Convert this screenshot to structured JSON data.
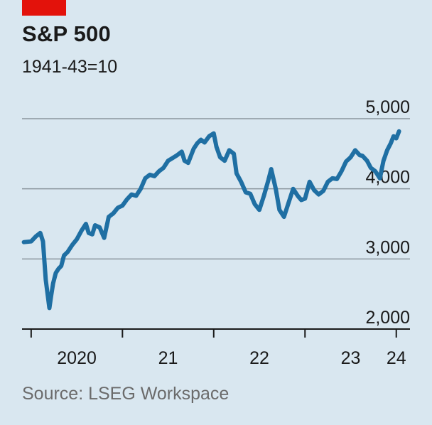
{
  "title": "S&P 500",
  "subtitle": "1941-43=10",
  "source": "Source: LSEG Workspace",
  "colors": {
    "line": "#1f6fa3",
    "accent": "#e3120b",
    "grid": "#8a969e",
    "background": "#d9e7f0"
  },
  "chart_data": {
    "type": "line",
    "title": "S&P 500",
    "subtitle": "1941-43=10",
    "ylim": [
      2000,
      5000
    ],
    "xlim": [
      2019.9,
      2024.15
    ],
    "y_ticks": [
      {
        "value": 5000,
        "label": "5,000"
      },
      {
        "value": 4000,
        "label": "4,000"
      },
      {
        "value": 3000,
        "label": "3,000"
      },
      {
        "value": 2000,
        "label": "2,000"
      }
    ],
    "x_ticks": [
      2020,
      2021,
      2022,
      2023,
      2024
    ],
    "x_tick_labels": [
      {
        "pos": 2020.5,
        "label": "2020"
      },
      {
        "pos": 2021.5,
        "label": "21"
      },
      {
        "pos": 2022.5,
        "label": "22"
      },
      {
        "pos": 2023.5,
        "label": "23"
      },
      {
        "pos": 2024.0,
        "label": "24"
      }
    ],
    "grid": true,
    "y_axis_position": "right",
    "series": [
      {
        "values": [
          [
            2019.92,
            3240
          ],
          [
            2020.0,
            3250
          ],
          [
            2020.05,
            3320
          ],
          [
            2020.1,
            3370
          ],
          [
            2020.13,
            3250
          ],
          [
            2020.16,
            2700
          ],
          [
            2020.2,
            2300
          ],
          [
            2020.22,
            2480
          ],
          [
            2020.24,
            2650
          ],
          [
            2020.27,
            2800
          ],
          [
            2020.3,
            2860
          ],
          [
            2020.33,
            2900
          ],
          [
            2020.36,
            3050
          ],
          [
            2020.4,
            3100
          ],
          [
            2020.45,
            3200
          ],
          [
            2020.5,
            3280
          ],
          [
            2020.55,
            3400
          ],
          [
            2020.6,
            3500
          ],
          [
            2020.63,
            3370
          ],
          [
            2020.67,
            3350
          ],
          [
            2020.7,
            3480
          ],
          [
            2020.75,
            3450
          ],
          [
            2020.8,
            3300
          ],
          [
            2020.85,
            3600
          ],
          [
            2020.9,
            3650
          ],
          [
            2020.95,
            3730
          ],
          [
            2021.0,
            3760
          ],
          [
            2021.05,
            3850
          ],
          [
            2021.1,
            3920
          ],
          [
            2021.15,
            3900
          ],
          [
            2021.2,
            4000
          ],
          [
            2021.25,
            4150
          ],
          [
            2021.3,
            4200
          ],
          [
            2021.35,
            4180
          ],
          [
            2021.4,
            4250
          ],
          [
            2021.45,
            4300
          ],
          [
            2021.5,
            4400
          ],
          [
            2021.55,
            4440
          ],
          [
            2021.6,
            4480
          ],
          [
            2021.65,
            4530
          ],
          [
            2021.68,
            4400
          ],
          [
            2021.72,
            4370
          ],
          [
            2021.78,
            4570
          ],
          [
            2021.82,
            4650
          ],
          [
            2021.86,
            4700
          ],
          [
            2021.9,
            4660
          ],
          [
            2021.95,
            4750
          ],
          [
            2022.0,
            4790
          ],
          [
            2022.03,
            4600
          ],
          [
            2022.07,
            4450
          ],
          [
            2022.12,
            4400
          ],
          [
            2022.17,
            4550
          ],
          [
            2022.22,
            4500
          ],
          [
            2022.25,
            4220
          ],
          [
            2022.3,
            4100
          ],
          [
            2022.35,
            3950
          ],
          [
            2022.4,
            3930
          ],
          [
            2022.45,
            3780
          ],
          [
            2022.5,
            3700
          ],
          [
            2022.55,
            3900
          ],
          [
            2022.6,
            4130
          ],
          [
            2022.63,
            4280
          ],
          [
            2022.68,
            4000
          ],
          [
            2022.72,
            3700
          ],
          [
            2022.77,
            3600
          ],
          [
            2022.82,
            3800
          ],
          [
            2022.87,
            4000
          ],
          [
            2022.92,
            3900
          ],
          [
            2022.96,
            3840
          ],
          [
            2023.0,
            3860
          ],
          [
            2023.05,
            4100
          ],
          [
            2023.1,
            3980
          ],
          [
            2023.15,
            3920
          ],
          [
            2023.2,
            3970
          ],
          [
            2023.25,
            4100
          ],
          [
            2023.3,
            4150
          ],
          [
            2023.35,
            4140
          ],
          [
            2023.4,
            4250
          ],
          [
            2023.45,
            4390
          ],
          [
            2023.5,
            4450
          ],
          [
            2023.55,
            4550
          ],
          [
            2023.6,
            4480
          ],
          [
            2023.63,
            4470
          ],
          [
            2023.68,
            4400
          ],
          [
            2023.72,
            4300
          ],
          [
            2023.77,
            4250
          ],
          [
            2023.82,
            4150
          ],
          [
            2023.86,
            4400
          ],
          [
            2023.9,
            4550
          ],
          [
            2023.94,
            4650
          ],
          [
            2023.97,
            4750
          ],
          [
            2024.0,
            4720
          ],
          [
            2024.03,
            4820
          ]
        ]
      }
    ]
  }
}
